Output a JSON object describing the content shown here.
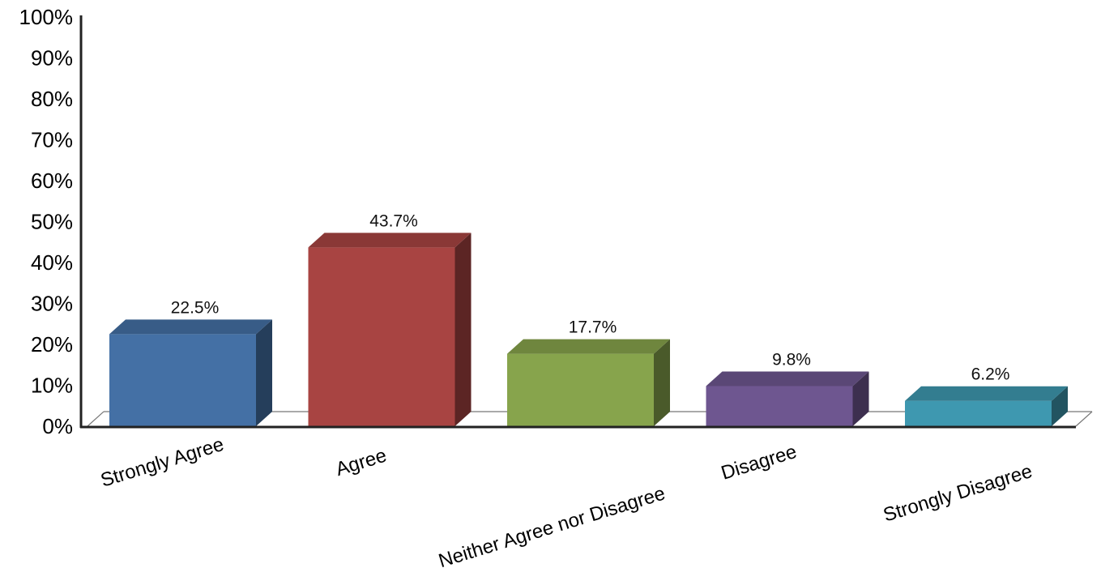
{
  "chart_data": {
    "type": "bar",
    "categories": [
      "Strongly Agree",
      "Agree",
      "Neither Agree nor Disagree",
      "Disagree",
      "Strongly Disagree"
    ],
    "values": [
      22.5,
      43.7,
      17.7,
      9.8,
      6.2
    ],
    "data_labels": [
      "22.5%",
      "43.7%",
      "17.7%",
      "9.8%",
      "6.2%"
    ],
    "colors": [
      "#4470A5",
      "#A84442",
      "#87A44C",
      "#6E5690",
      "#3E98B0"
    ],
    "ylim": [
      0,
      100
    ],
    "y_ticks": [
      0,
      10,
      20,
      30,
      40,
      50,
      60,
      70,
      80,
      90,
      100
    ],
    "y_tick_labels": [
      "0%",
      "10%",
      "20%",
      "30%",
      "40%",
      "50%",
      "60%",
      "70%",
      "80%",
      "90%",
      "100%"
    ],
    "title": "",
    "xlabel": "",
    "ylabel": "",
    "grid": false,
    "style": "3d-bar"
  }
}
